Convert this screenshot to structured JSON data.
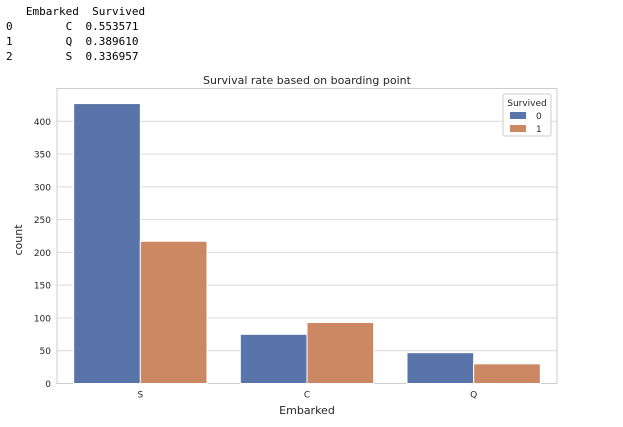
{
  "dataframe": {
    "columns": [
      "Embarked",
      "Survived"
    ],
    "rows": [
      {
        "index": "0",
        "embarked": "C",
        "survived": "0.553571"
      },
      {
        "index": "1",
        "embarked": "Q",
        "survived": "0.389610"
      },
      {
        "index": "2",
        "embarked": "S",
        "survived": "0.336957"
      }
    ]
  },
  "chart_data": {
    "type": "bar",
    "title": "Survival rate based on boarding point",
    "xlabel": "Embarked",
    "ylabel": "count",
    "categories": [
      "S",
      "C",
      "Q"
    ],
    "series": [
      {
        "name": "0",
        "values": [
          427,
          75,
          47
        ],
        "color": "#5874a8"
      },
      {
        "name": "1",
        "values": [
          217,
          93,
          30
        ],
        "color": "#cc8862"
      }
    ],
    "ylim": [
      0,
      450
    ],
    "yticks": [
      0,
      50,
      100,
      150,
      200,
      250,
      300,
      350,
      400
    ],
    "legend": {
      "title": "Survived",
      "position": "top-right"
    },
    "grid": "horizontal"
  }
}
